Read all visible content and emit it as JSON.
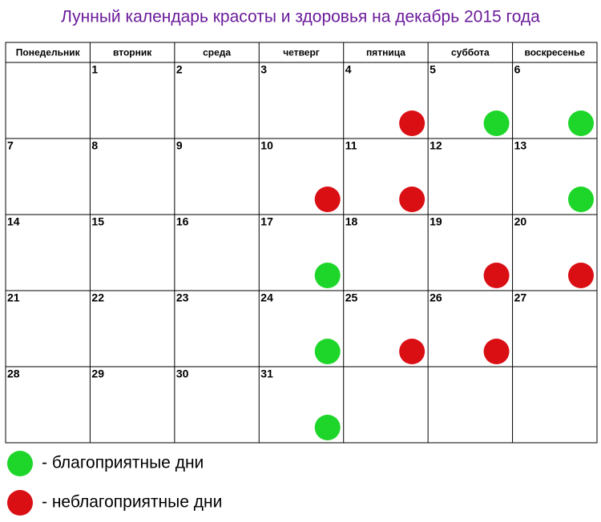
{
  "title": "Лунный календарь красоты и здоровья на декабрь 2015 года",
  "colors": {
    "good": "#1ed62a",
    "bad": "#d90f14"
  },
  "weekdays": [
    "Понедельник",
    "вторник",
    "среда",
    "четверг",
    "пятница",
    "суббота",
    "воскресенье"
  ],
  "weeks": [
    [
      null,
      {
        "day": "1"
      },
      {
        "day": "2"
      },
      {
        "day": "3"
      },
      {
        "day": "4",
        "marker": "bad"
      },
      {
        "day": "5",
        "marker": "good"
      },
      {
        "day": "6",
        "marker": "good"
      }
    ],
    [
      {
        "day": "7"
      },
      {
        "day": "8"
      },
      {
        "day": "9"
      },
      {
        "day": "10",
        "marker": "bad"
      },
      {
        "day": "11",
        "marker": "bad"
      },
      {
        "day": "12"
      },
      {
        "day": "13",
        "marker": "good"
      }
    ],
    [
      {
        "day": "14"
      },
      {
        "day": "15"
      },
      {
        "day": "16"
      },
      {
        "day": "17",
        "marker": "good"
      },
      {
        "day": "18"
      },
      {
        "day": "19",
        "marker": "bad"
      },
      {
        "day": "20",
        "marker": "bad"
      }
    ],
    [
      {
        "day": "21"
      },
      {
        "day": "22"
      },
      {
        "day": "23"
      },
      {
        "day": "24",
        "marker": "good"
      },
      {
        "day": "25",
        "marker": "bad"
      },
      {
        "day": "26",
        "marker": "bad"
      },
      {
        "day": "27"
      }
    ],
    [
      {
        "day": "28"
      },
      {
        "day": "29"
      },
      {
        "day": "30"
      },
      {
        "day": "31",
        "marker": "good"
      },
      null,
      null,
      null
    ]
  ],
  "legend": [
    {
      "marker": "good",
      "text": "- благоприятные дни"
    },
    {
      "marker": "bad",
      "text": "- неблагоприятные дни"
    }
  ]
}
